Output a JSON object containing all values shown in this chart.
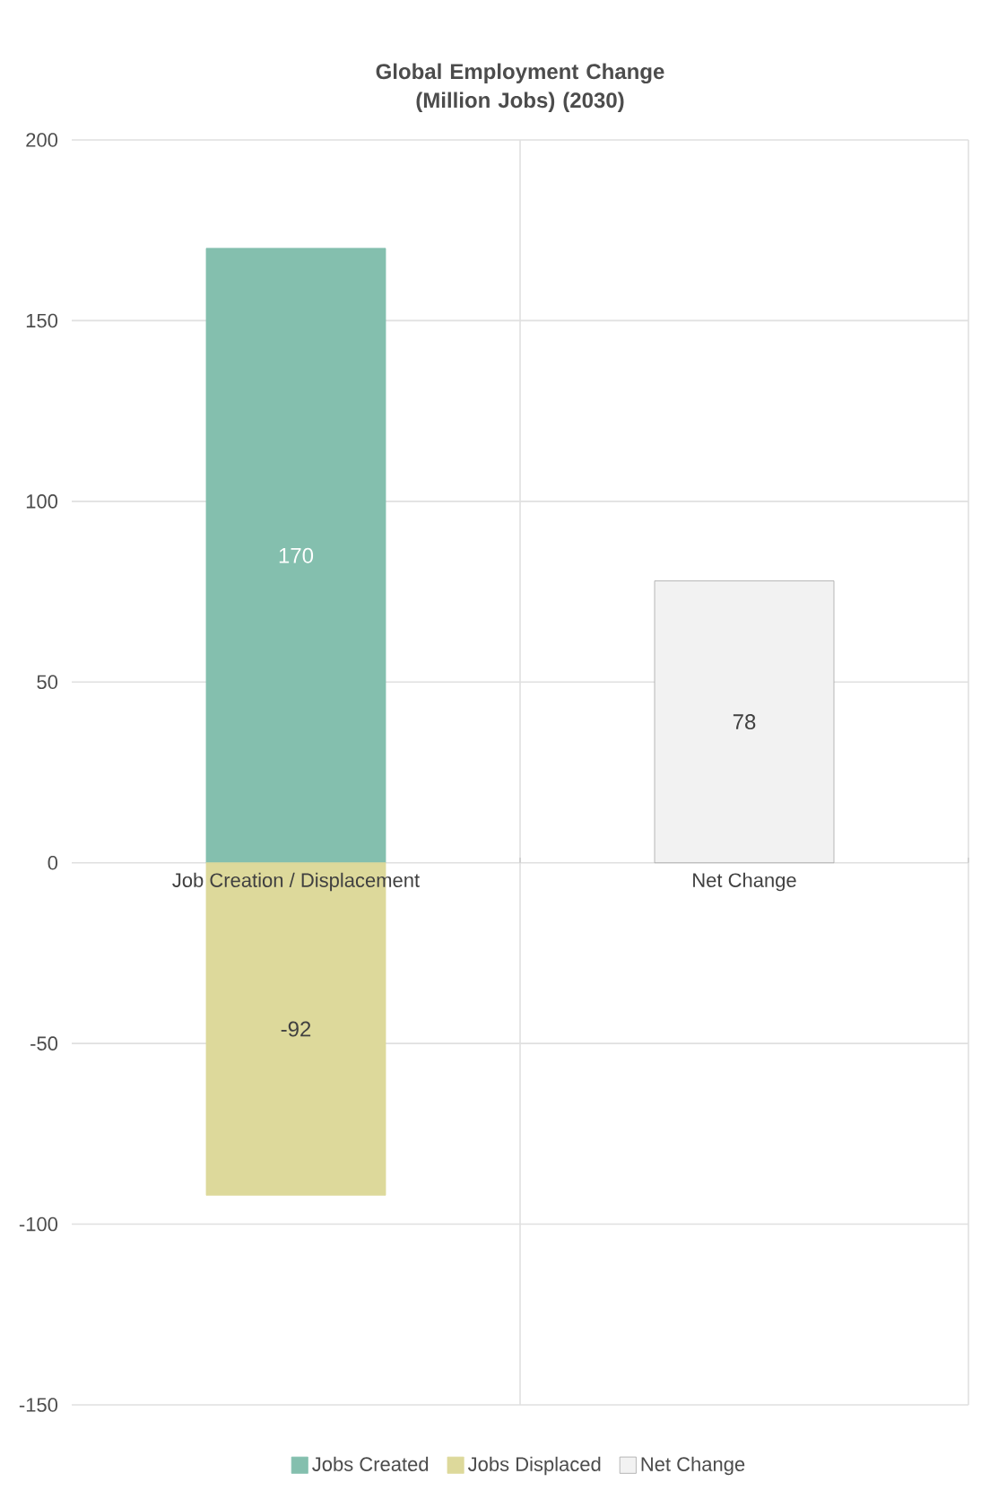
{
  "chart_data": {
    "type": "bar",
    "title": "Global Employment Change (Million Jobs) (2030)",
    "categories": [
      "Job Creation / Displacement",
      "Net Change"
    ],
    "series": [
      {
        "name": "Jobs Created",
        "color": "#84bfae",
        "values": [
          170,
          null
        ]
      },
      {
        "name": "Jobs Displaced",
        "color": "#ddd99b",
        "values": [
          -92,
          null
        ]
      },
      {
        "name": "Net Change",
        "color": "#f2f2f2",
        "values": [
          null,
          78
        ]
      }
    ],
    "stacked": true,
    "ylim": [
      -150,
      200
    ],
    "yticks": [
      -150,
      -100,
      -50,
      0,
      50,
      100,
      150,
      200
    ],
    "grid": true,
    "legend": "bottom",
    "data_labels": true
  }
}
